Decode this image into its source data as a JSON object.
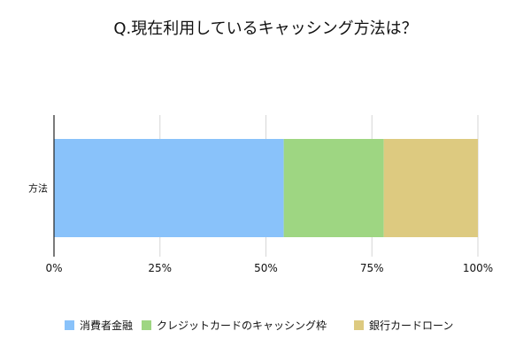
{
  "chart_data": {
    "type": "bar",
    "orientation": "horizontal",
    "stacked": true,
    "percent": true,
    "title": "Q.現在利用しているキャッシング方法は？",
    "categories": [
      "方法"
    ],
    "series": [
      {
        "name": "消費者金融",
        "values": [
          54.2
        ],
        "color": "#89c2fa"
      },
      {
        "name": "クレジットカードのキャッシング枠",
        "values": [
          23.6
        ],
        "color": "#9ed682"
      },
      {
        "name": "銀行カードローン",
        "values": [
          22.2
        ],
        "color": "#ddca80"
      }
    ],
    "xlim": [
      0,
      100
    ],
    "xticks": [
      "0%",
      "25%",
      "50%",
      "75%",
      "100%"
    ],
    "grid": true,
    "legend": "bottom"
  }
}
